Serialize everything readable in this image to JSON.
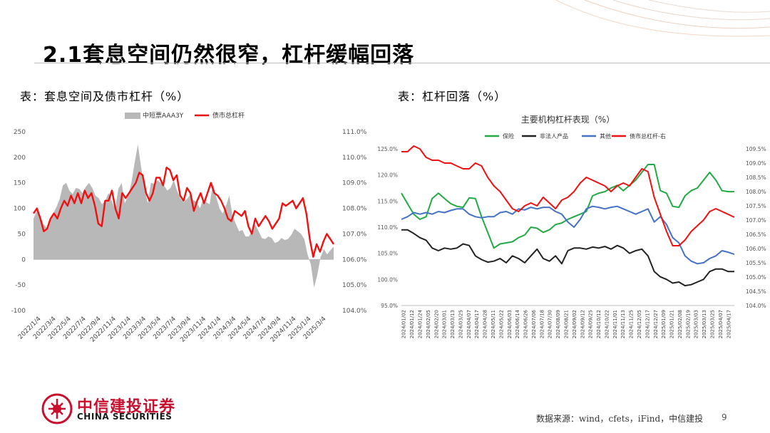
{
  "slide": {
    "title": "2.1套息空间仍然很窄，杠杆缓幅回落",
    "caption_left": "表：套息空间及债市杠杆（%）",
    "caption_right": "表：杠杆回落（%）",
    "source": "数据来源：wind，cfets，iFind，中信建投",
    "page_number": "9",
    "logo_cn": "中信建投证券",
    "logo_en": "CHINA SECURITIES",
    "brand_color": "#c8102e"
  },
  "chart_data": [
    {
      "type": "area",
      "title": "",
      "legend_position": "top",
      "legend": [
        "中短票AAA3Y",
        "债市总杠杆"
      ],
      "left_axis": {
        "range": [
          -100,
          250
        ],
        "ticks": [
          "250",
          "200",
          "150",
          "100",
          "50",
          "0",
          "-50",
          "-100"
        ]
      },
      "right_axis": {
        "range": [
          104.0,
          111.0
        ],
        "ticks": [
          "111.0%",
          "110.0%",
          "109.0%",
          "108.0%",
          "107.0%",
          "106.0%",
          "105.0%",
          "104.0%"
        ]
      },
      "x_ticks": [
        "2022/1/4",
        "2022/3/4",
        "2022/5/4",
        "2022/7/4",
        "2022/9/4",
        "2022/11/4",
        "2023/1/4",
        "2023/3/4",
        "2023/5/4",
        "2023/7/4",
        "2023/9/4",
        "2023/11/4",
        "2024/1/4",
        "2024/3/4",
        "2024/5/4",
        "2024/7/4",
        "2024/9/4",
        "2024/11/4",
        "2025/1/4",
        "2025/3/4"
      ],
      "series": [
        {
          "name": "中短票AAA3Y",
          "axis": "left",
          "color": "#b8b8b8",
          "values": [
            80,
            95,
            85,
            70,
            62,
            78,
            90,
            102,
            118,
            145,
            150,
            135,
            128,
            140,
            138,
            130,
            142,
            150,
            140,
            125,
            120,
            108,
            115,
            130,
            115,
            98,
            138,
            150,
            110,
            125,
            150,
            190,
            225,
            180,
            140,
            110,
            150,
            148,
            155,
            150,
            145,
            135,
            140,
            155,
            135,
            120,
            112,
            118,
            126,
            116,
            113,
            100,
            118,
            112,
            108,
            150,
            122,
            100,
            90,
            105,
            125,
            85,
            70,
            55,
            58,
            45,
            45,
            56,
            68,
            55,
            42,
            40,
            45,
            42,
            32,
            35,
            42,
            38,
            40,
            48,
            60,
            55,
            50,
            40,
            10,
            -10,
            -55,
            -30,
            5,
            20,
            10,
            18,
            25
          ]
        },
        {
          "name": "债市总杠杆",
          "axis": "right",
          "color": "#ee1111",
          "values": [
            107.8,
            108.0,
            107.6,
            107.1,
            107.2,
            107.6,
            107.8,
            107.6,
            108.0,
            108.3,
            108.1,
            108.5,
            108.2,
            108.6,
            108.2,
            108.7,
            108.4,
            108.6,
            108.1,
            107.4,
            107.3,
            108.3,
            108.3,
            108.7,
            108.0,
            107.6,
            108.6,
            108.4,
            108.6,
            108.8,
            109.0,
            109.4,
            109.3,
            108.6,
            108.3,
            108.6,
            109.2,
            109.2,
            108.9,
            109.6,
            109.5,
            109.1,
            109.3,
            108.5,
            108.3,
            108.8,
            108.6,
            107.9,
            108.3,
            108.6,
            108.2,
            108.6,
            109.0,
            108.6,
            108.5,
            108.3,
            108.0,
            107.6,
            107.5,
            107.9,
            107.8,
            107.7,
            107.9,
            107.3,
            107.0,
            107.6,
            107.3,
            107.5,
            107.7,
            107.5,
            107.2,
            107.4,
            107.6,
            108.2,
            108.1,
            108.2,
            108.3,
            108.0,
            108.2,
            108.4,
            107.8,
            106.8,
            106.1,
            106.6,
            106.3,
            106.7,
            107.0,
            106.8,
            106.6
          ]
        }
      ]
    },
    {
      "type": "line",
      "title": "主要机构杠杆表现（%）",
      "legend_position": "top",
      "left_axis": {
        "range": [
          95.0,
          125.0
        ],
        "ticks": [
          "125.0%",
          "120.0%",
          "115.0%",
          "110.0%",
          "105.0%",
          "100.0%",
          "95.0%"
        ]
      },
      "right_axis": {
        "range": [
          104.0,
          109.5
        ],
        "ticks": [
          "109.5%",
          "109.0%",
          "108.5%",
          "108.0%",
          "107.5%",
          "107.0%",
          "106.5%",
          "106.0%",
          "105.5%",
          "105.0%",
          "104.5%",
          "104.0%"
        ]
      },
      "x_ticks": [
        "2024/01/02",
        "2024/01/12",
        "2024/01/24",
        "2024/02/05",
        "2024/02/20",
        "2024/03/01",
        "2024/03/13",
        "2024/03/25",
        "2024/04/07",
        "2024/04/17",
        "2024/04/28",
        "2024/05/11",
        "2024/05/22",
        "2024/06/03",
        "2024/06/14",
        "2024/06/26",
        "2024/07/06",
        "2024/07/18",
        "2024/07/30",
        "2024/08/09",
        "2024/08/21",
        "2024/09/02",
        "2024/09/12",
        "2024/09/25",
        "2024/10/12",
        "2024/10/22",
        "2024/11/01",
        "2024/11/13",
        "2024/11/25",
        "2024/12/05",
        "2024/12/17",
        "2024/12/27",
        "2025/01/09",
        "2025/01/21",
        "2025/02/08",
        "2025/02/19",
        "2025/03/03",
        "2025/03/13",
        "2025/03/25",
        "2025/04/07",
        "2025/04/17"
      ],
      "series": [
        {
          "name": "保险",
          "axis": "left",
          "color": "#22aa44",
          "values": [
            116.5,
            114.5,
            112.5,
            111.5,
            112.0,
            115.5,
            116.5,
            115.5,
            114.5,
            114.0,
            113.8,
            115.6,
            115.5,
            112.0,
            109.0,
            106.0,
            106.8,
            107.0,
            107.2,
            108.0,
            108.5,
            110.0,
            109.8,
            109.0,
            109.5,
            110.5,
            110.8,
            111.5,
            112.0,
            112.5,
            113.0,
            116.0,
            116.5,
            116.8,
            117.5,
            118.0,
            117.0,
            118.0,
            119.0,
            120.5,
            122.0,
            122.0,
            117.0,
            116.5,
            114.0,
            113.8,
            116.0,
            117.0,
            117.5,
            119.0,
            120.5,
            119.0,
            117.0,
            116.8,
            116.8
          ]
        },
        {
          "name": "非法人产品",
          "axis": "left",
          "color": "#222222",
          "values": [
            109.5,
            109.5,
            108.8,
            108.0,
            107.5,
            106.0,
            105.5,
            106.0,
            105.8,
            106.0,
            106.8,
            106.5,
            104.5,
            103.8,
            103.3,
            103.5,
            104.0,
            103.2,
            104.5,
            104.0,
            103.2,
            104.5,
            105.8,
            104.0,
            103.5,
            104.5,
            103.0,
            105.5,
            106.0,
            106.0,
            105.8,
            106.2,
            106.0,
            106.3,
            105.8,
            106.5,
            106.0,
            105.0,
            105.5,
            105.8,
            104.5,
            101.5,
            100.5,
            100.0,
            99.3,
            99.5,
            98.8,
            99.0,
            99.5,
            100.0,
            101.5,
            102.0,
            102.0,
            101.5,
            101.5
          ]
        },
        {
          "name": "其他",
          "axis": "left",
          "color": "#4472c4",
          "values": [
            111.5,
            112.0,
            112.8,
            112.5,
            112.8,
            112.5,
            113.0,
            112.8,
            113.2,
            113.5,
            113.5,
            112.5,
            112.0,
            111.8,
            112.0,
            112.0,
            112.8,
            113.0,
            112.5,
            113.5,
            113.3,
            113.8,
            113.5,
            113.8,
            113.8,
            113.0,
            112.5,
            111.0,
            110.0,
            111.5,
            113.5,
            114.0,
            113.8,
            113.5,
            113.8,
            114.0,
            113.5,
            113.0,
            112.5,
            113.0,
            113.5,
            111.0,
            112.0,
            110.5,
            108.0,
            107.0,
            104.5,
            103.5,
            103.0,
            103.2,
            104.0,
            104.5,
            105.5,
            105.2,
            104.8
          ]
        },
        {
          "name": "债市总杠杆-右",
          "axis": "right",
          "color": "#ee1111",
          "values": [
            109.4,
            109.4,
            109.6,
            109.5,
            109.2,
            109.1,
            109.1,
            109.0,
            109.0,
            108.9,
            108.8,
            108.8,
            109.0,
            108.9,
            108.5,
            108.2,
            108.0,
            107.7,
            107.4,
            107.3,
            107.5,
            107.6,
            107.5,
            107.8,
            107.6,
            107.4,
            107.7,
            107.8,
            108.0,
            108.3,
            108.5,
            108.4,
            108.3,
            108.2,
            108.0,
            108.2,
            108.3,
            108.2,
            108.5,
            108.8,
            108.7,
            107.8,
            107.2,
            106.6,
            106.1,
            106.1,
            106.3,
            106.6,
            106.8,
            107.0,
            107.3,
            107.4,
            107.3,
            107.2,
            107.1
          ]
        }
      ]
    }
  ]
}
